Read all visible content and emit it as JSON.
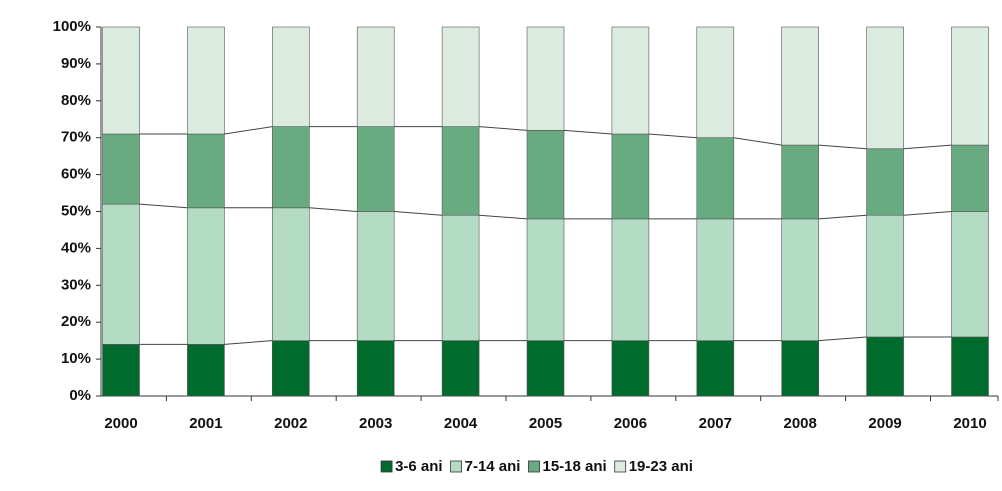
{
  "chart_data": {
    "type": "stacked_bar_100",
    "categories": [
      "2000",
      "2001",
      "2002",
      "2003",
      "2004",
      "2005",
      "2006",
      "2007",
      "2008",
      "2009",
      "2010"
    ],
    "series": [
      {
        "name": "3-6 ani",
        "color": "#006b2d",
        "values": [
          14,
          14,
          15,
          15,
          15,
          15,
          15,
          15,
          15,
          16,
          16
        ]
      },
      {
        "name": "7-14 ani",
        "color": "#b4dbc4",
        "values": [
          38,
          37,
          36,
          35,
          34,
          33,
          33,
          33,
          33,
          33,
          34
        ]
      },
      {
        "name": "15-18 ani",
        "color": "#68ab80",
        "values": [
          19,
          20,
          22,
          23,
          24,
          24,
          23,
          22,
          20,
          18,
          18
        ]
      },
      {
        "name": "19-23 ani",
        "color": "#dbebe0",
        "values": [
          29,
          29,
          27,
          27,
          27,
          28,
          29,
          30,
          32,
          33,
          32
        ]
      }
    ],
    "ylim": [
      0,
      100
    ],
    "yticks": [
      {
        "value": 0,
        "label": "0%"
      },
      {
        "value": 10,
        "label": "10%"
      },
      {
        "value": 20,
        "label": "20%"
      },
      {
        "value": 30,
        "label": "30%"
      },
      {
        "value": 40,
        "label": "40%"
      },
      {
        "value": 50,
        "label": "50%"
      },
      {
        "value": 60,
        "label": "60%"
      },
      {
        "value": 70,
        "label": "70%"
      },
      {
        "value": 80,
        "label": "80%"
      },
      {
        "value": 90,
        "label": "90%"
      },
      {
        "value": 100,
        "label": "100%"
      }
    ],
    "legend": "bottom"
  }
}
